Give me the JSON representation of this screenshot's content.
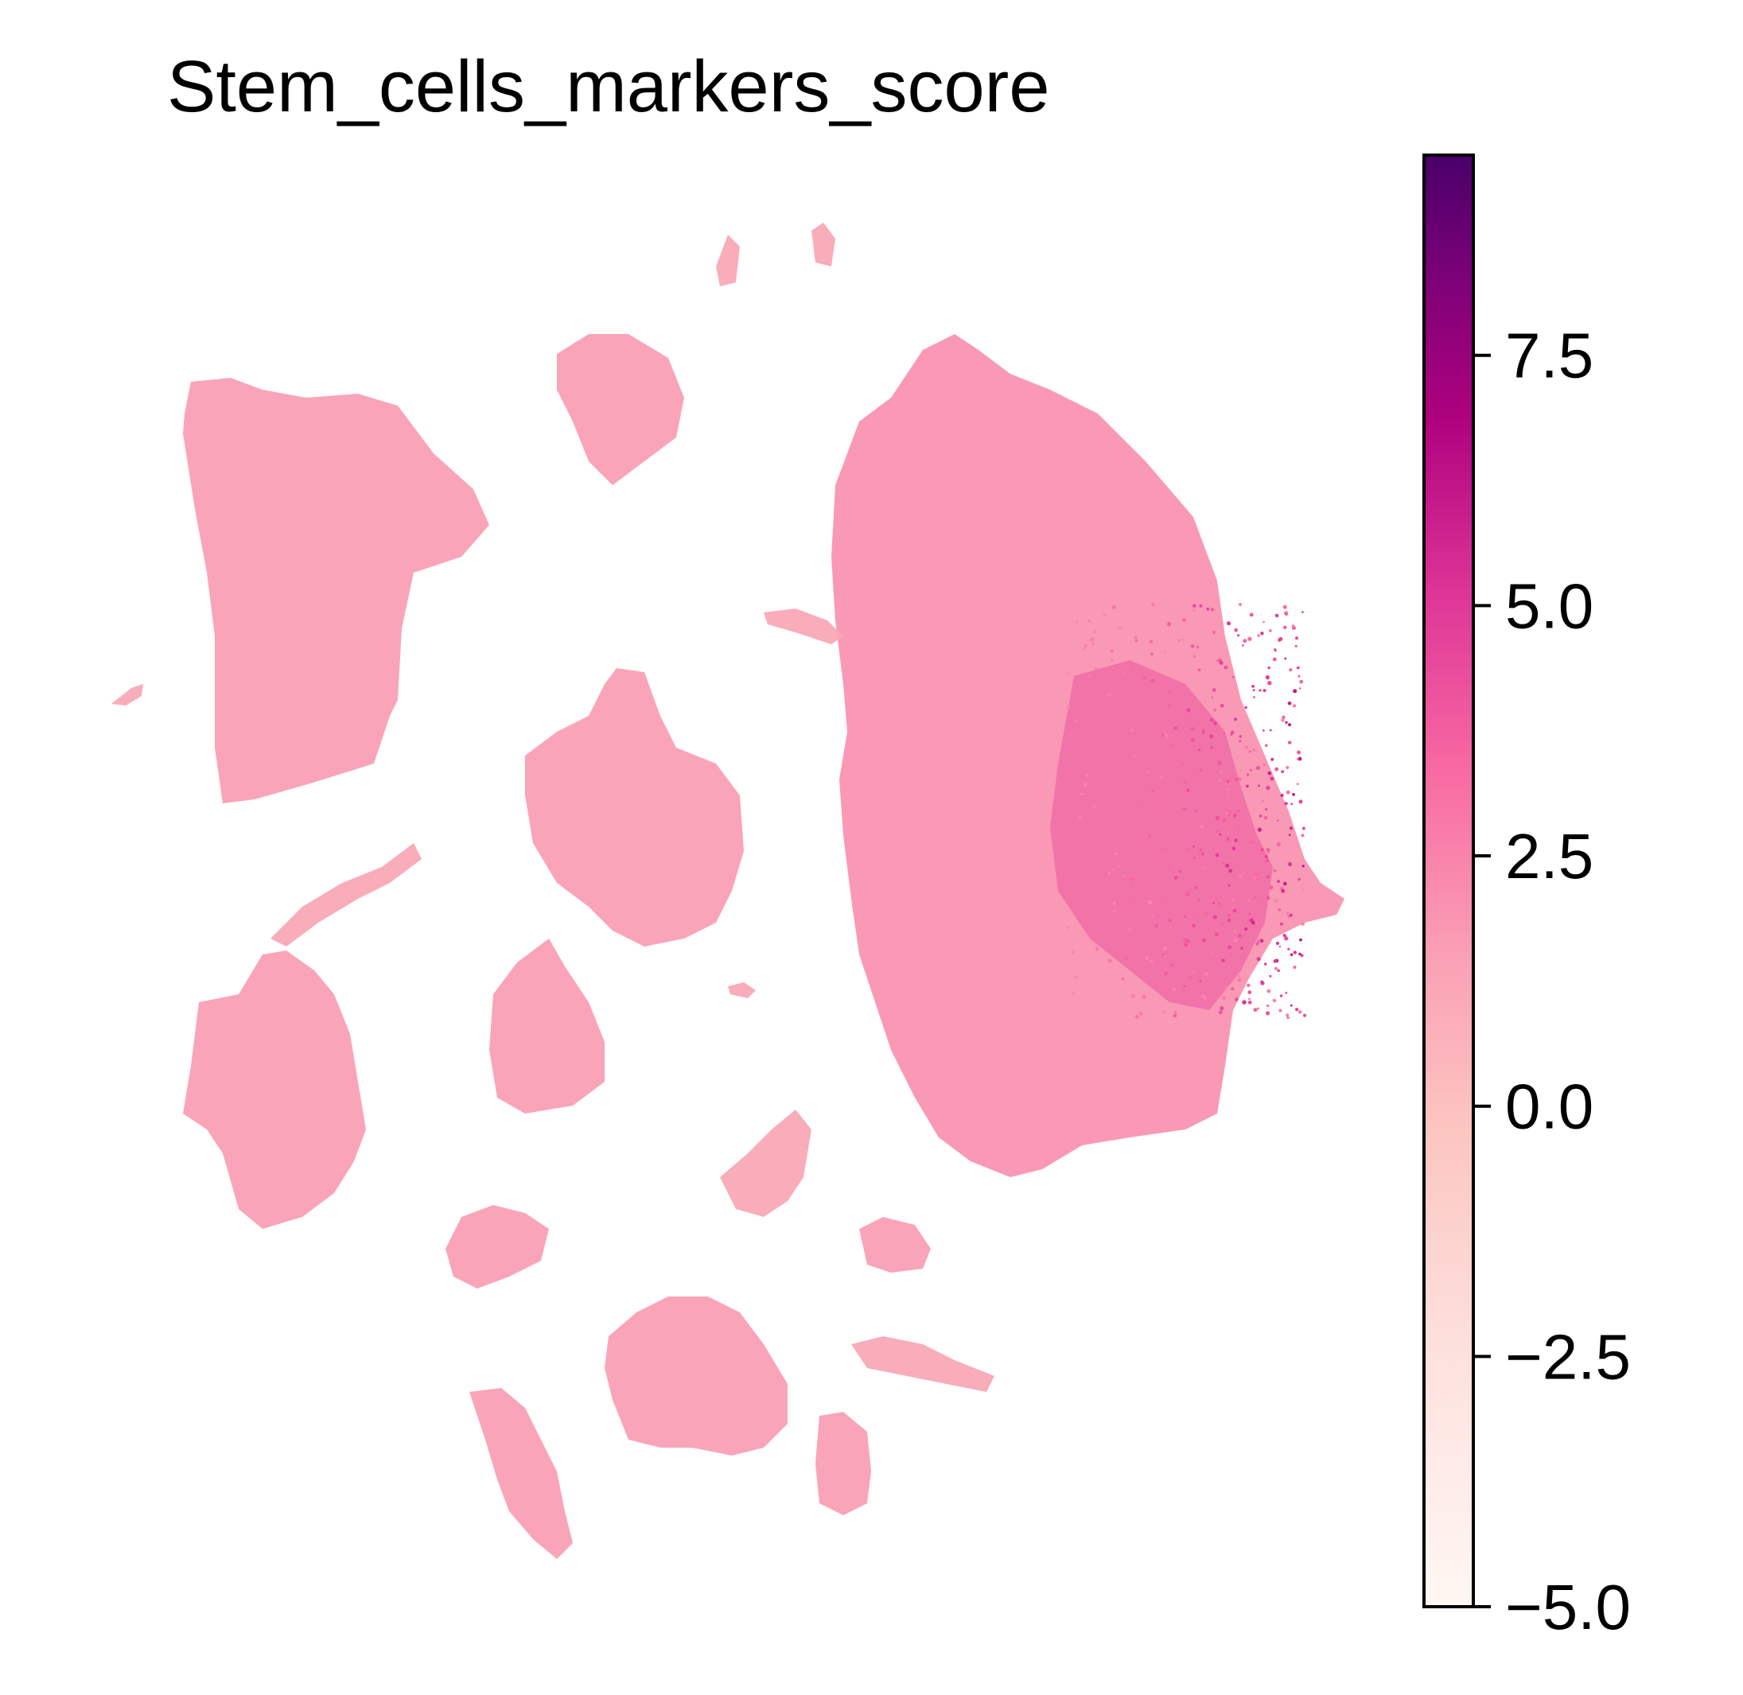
{
  "chart_data": {
    "type": "scatter",
    "title": "Stem_cells_markers_score",
    "xlabel": "",
    "ylabel": "",
    "axes_visible": false,
    "grid": false,
    "colorbar": {
      "colormap": "RdPu",
      "placement": "right",
      "vmin": -5.0,
      "vmax": 9.5,
      "ticks": [
        7.5,
        5.0,
        2.5,
        0.0,
        -2.5,
        -5.0
      ],
      "tick_labels": [
        "7.5",
        "5.0",
        "2.5",
        "0.0",
        "−2.5",
        "−5.0"
      ],
      "colors": {
        "low": "#fff7f3",
        "mid_low": "#fcc5c0",
        "mid": "#fa9fb5",
        "mid_high": "#f768a1",
        "high": "#ae017e",
        "max": "#49006a"
      }
    },
    "point_color_default": "#f9a8b6",
    "series": [
      {
        "description_values": "score per cell",
        "clusters": [
          {
            "id": "top-left-large",
            "score": 0.0
          },
          {
            "id": "top-center-small",
            "score": 0.0
          },
          {
            "id": "center-large",
            "score": 0.0
          },
          {
            "id": "center-teardrop",
            "score": 0.0
          },
          {
            "id": "left-lower",
            "score": 0.0
          },
          {
            "id": "bottom-left-small",
            "score": 0.0
          },
          {
            "id": "bottom-center",
            "score": 0.0
          },
          {
            "id": "bottom-left-strand",
            "score": 0.0
          },
          {
            "id": "bottom-right-small",
            "score": 0.0
          },
          {
            "id": "bottom-right-lower",
            "score": 0.0
          },
          {
            "id": "right-large",
            "score": 0.5
          },
          {
            "id": "right-hotspot",
            "score": 3.5
          }
        ]
      }
    ]
  }
}
